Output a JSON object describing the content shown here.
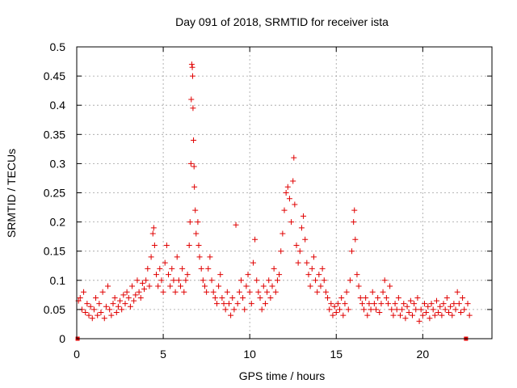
{
  "chart_data": {
    "type": "scatter",
    "title": "Day 091 of 2018, SRMTID for receiver ista",
    "xlabel": "GPS time / hours",
    "ylabel": "SRMTID / TECUs",
    "xlim": [
      0,
      24
    ],
    "ylim": [
      0,
      0.5
    ],
    "xticks": [
      0,
      5,
      10,
      15,
      20
    ],
    "xtick_labels": [
      "0",
      "5",
      "10",
      "15",
      "20"
    ],
    "yticks": [
      0,
      0.05,
      0.1,
      0.15,
      0.2,
      0.25,
      0.3,
      0.35,
      0.4,
      0.45,
      0.5
    ],
    "ytick_labels": [
      "0",
      "0.05",
      "0.1",
      "0.15",
      "0.2",
      "0.25",
      "0.3",
      "0.35",
      "0.4",
      "0.45",
      "0.5"
    ],
    "grid": true,
    "marker": "+",
    "color": "#e00000",
    "series": [
      {
        "name": "SRMTID",
        "points": [
          [
            0.05,
            0.0
          ],
          [
            0.1,
            0.065
          ],
          [
            0.2,
            0.07
          ],
          [
            0.3,
            0.05
          ],
          [
            0.4,
            0.08
          ],
          [
            0.5,
            0.045
          ],
          [
            0.6,
            0.06
          ],
          [
            0.7,
            0.04
          ],
          [
            0.8,
            0.055
          ],
          [
            0.9,
            0.035
          ],
          [
            1.0,
            0.05
          ],
          [
            1.1,
            0.07
          ],
          [
            1.2,
            0.04
          ],
          [
            1.3,
            0.06
          ],
          [
            1.4,
            0.045
          ],
          [
            1.5,
            0.08
          ],
          [
            1.6,
            0.035
          ],
          [
            1.7,
            0.055
          ],
          [
            1.8,
            0.09
          ],
          [
            1.9,
            0.05
          ],
          [
            2.0,
            0.04
          ],
          [
            2.1,
            0.06
          ],
          [
            2.2,
            0.07
          ],
          [
            2.3,
            0.045
          ],
          [
            2.4,
            0.055
          ],
          [
            2.5,
            0.065
          ],
          [
            2.6,
            0.05
          ],
          [
            2.7,
            0.075
          ],
          [
            2.8,
            0.06
          ],
          [
            2.9,
            0.08
          ],
          [
            3.0,
            0.07
          ],
          [
            3.1,
            0.055
          ],
          [
            3.2,
            0.09
          ],
          [
            3.3,
            0.065
          ],
          [
            3.4,
            0.075
          ],
          [
            3.5,
            0.1
          ],
          [
            3.6,
            0.08
          ],
          [
            3.7,
            0.07
          ],
          [
            3.8,
            0.095
          ],
          [
            3.9,
            0.085
          ],
          [
            4.0,
            0.1
          ],
          [
            4.1,
            0.12
          ],
          [
            4.2,
            0.09
          ],
          [
            4.3,
            0.14
          ],
          [
            4.4,
            0.18
          ],
          [
            4.45,
            0.19
          ],
          [
            4.5,
            0.16
          ],
          [
            4.6,
            0.11
          ],
          [
            4.7,
            0.09
          ],
          [
            4.8,
            0.12
          ],
          [
            4.9,
            0.1
          ],
          [
            5.0,
            0.08
          ],
          [
            5.1,
            0.13
          ],
          [
            5.2,
            0.16
          ],
          [
            5.3,
            0.11
          ],
          [
            5.4,
            0.09
          ],
          [
            5.5,
            0.12
          ],
          [
            5.6,
            0.1
          ],
          [
            5.7,
            0.08
          ],
          [
            5.8,
            0.14
          ],
          [
            5.9,
            0.1
          ],
          [
            6.0,
            0.09
          ],
          [
            6.1,
            0.12
          ],
          [
            6.2,
            0.08
          ],
          [
            6.3,
            0.1
          ],
          [
            6.4,
            0.11
          ],
          [
            6.5,
            0.16
          ],
          [
            6.55,
            0.2
          ],
          [
            6.6,
            0.3
          ],
          [
            6.62,
            0.41
          ],
          [
            6.65,
            0.47
          ],
          [
            6.68,
            0.465
          ],
          [
            6.7,
            0.45
          ],
          [
            6.72,
            0.395
          ],
          [
            6.75,
            0.34
          ],
          [
            6.78,
            0.295
          ],
          [
            6.8,
            0.26
          ],
          [
            6.85,
            0.22
          ],
          [
            6.9,
            0.18
          ],
          [
            7.0,
            0.2
          ],
          [
            7.05,
            0.16
          ],
          [
            7.1,
            0.14
          ],
          [
            7.2,
            0.12
          ],
          [
            7.3,
            0.1
          ],
          [
            7.4,
            0.09
          ],
          [
            7.5,
            0.08
          ],
          [
            7.6,
            0.12
          ],
          [
            7.7,
            0.14
          ],
          [
            7.8,
            0.1
          ],
          [
            7.9,
            0.08
          ],
          [
            8.0,
            0.07
          ],
          [
            8.1,
            0.06
          ],
          [
            8.2,
            0.09
          ],
          [
            8.3,
            0.11
          ],
          [
            8.4,
            0.07
          ],
          [
            8.5,
            0.06
          ],
          [
            8.6,
            0.05
          ],
          [
            8.7,
            0.08
          ],
          [
            8.8,
            0.06
          ],
          [
            8.9,
            0.04
          ],
          [
            9.0,
            0.07
          ],
          [
            9.1,
            0.05
          ],
          [
            9.2,
            0.195
          ],
          [
            9.3,
            0.06
          ],
          [
            9.4,
            0.08
          ],
          [
            9.5,
            0.1
          ],
          [
            9.6,
            0.07
          ],
          [
            9.7,
            0.05
          ],
          [
            9.8,
            0.09
          ],
          [
            9.9,
            0.11
          ],
          [
            10.0,
            0.08
          ],
          [
            10.1,
            0.06
          ],
          [
            10.2,
            0.13
          ],
          [
            10.3,
            0.17
          ],
          [
            10.4,
            0.1
          ],
          [
            10.5,
            0.08
          ],
          [
            10.6,
            0.07
          ],
          [
            10.7,
            0.05
          ],
          [
            10.8,
            0.09
          ],
          [
            10.9,
            0.06
          ],
          [
            11.0,
            0.08
          ],
          [
            11.1,
            0.1
          ],
          [
            11.2,
            0.07
          ],
          [
            11.3,
            0.09
          ],
          [
            11.4,
            0.12
          ],
          [
            11.5,
            0.08
          ],
          [
            11.6,
            0.1
          ],
          [
            11.7,
            0.11
          ],
          [
            11.8,
            0.15
          ],
          [
            11.9,
            0.18
          ],
          [
            12.0,
            0.22
          ],
          [
            12.1,
            0.25
          ],
          [
            12.2,
            0.26
          ],
          [
            12.3,
            0.24
          ],
          [
            12.4,
            0.2
          ],
          [
            12.5,
            0.27
          ],
          [
            12.55,
            0.31
          ],
          [
            12.6,
            0.23
          ],
          [
            12.7,
            0.16
          ],
          [
            12.8,
            0.13
          ],
          [
            12.9,
            0.15
          ],
          [
            13.0,
            0.19
          ],
          [
            13.1,
            0.21
          ],
          [
            13.2,
            0.17
          ],
          [
            13.3,
            0.13
          ],
          [
            13.4,
            0.11
          ],
          [
            13.5,
            0.09
          ],
          [
            13.6,
            0.12
          ],
          [
            13.7,
            0.14
          ],
          [
            13.8,
            0.1
          ],
          [
            13.9,
            0.08
          ],
          [
            14.0,
            0.11
          ],
          [
            14.1,
            0.09
          ],
          [
            14.2,
            0.12
          ],
          [
            14.3,
            0.1
          ],
          [
            14.4,
            0.08
          ],
          [
            14.5,
            0.07
          ],
          [
            14.6,
            0.05
          ],
          [
            14.7,
            0.06
          ],
          [
            14.8,
            0.04
          ],
          [
            14.9,
            0.055
          ],
          [
            15.0,
            0.045
          ],
          [
            15.1,
            0.06
          ],
          [
            15.2,
            0.05
          ],
          [
            15.3,
            0.07
          ],
          [
            15.4,
            0.04
          ],
          [
            15.5,
            0.06
          ],
          [
            15.6,
            0.08
          ],
          [
            15.7,
            0.05
          ],
          [
            15.8,
            0.1
          ],
          [
            15.9,
            0.15
          ],
          [
            16.0,
            0.2
          ],
          [
            16.05,
            0.22
          ],
          [
            16.1,
            0.17
          ],
          [
            16.2,
            0.11
          ],
          [
            16.3,
            0.09
          ],
          [
            16.4,
            0.07
          ],
          [
            16.5,
            0.06
          ],
          [
            16.6,
            0.05
          ],
          [
            16.7,
            0.07
          ],
          [
            16.8,
            0.04
          ],
          [
            16.9,
            0.06
          ],
          [
            17.0,
            0.05
          ],
          [
            17.1,
            0.08
          ],
          [
            17.2,
            0.06
          ],
          [
            17.3,
            0.05
          ],
          [
            17.4,
            0.07
          ],
          [
            17.5,
            0.045
          ],
          [
            17.6,
            0.06
          ],
          [
            17.7,
            0.08
          ],
          [
            17.8,
            0.1
          ],
          [
            17.9,
            0.07
          ],
          [
            18.0,
            0.06
          ],
          [
            18.1,
            0.09
          ],
          [
            18.2,
            0.05
          ],
          [
            18.3,
            0.04
          ],
          [
            18.4,
            0.06
          ],
          [
            18.5,
            0.05
          ],
          [
            18.6,
            0.07
          ],
          [
            18.7,
            0.04
          ],
          [
            18.8,
            0.05
          ],
          [
            18.9,
            0.06
          ],
          [
            19.0,
            0.035
          ],
          [
            19.1,
            0.055
          ],
          [
            19.2,
            0.045
          ],
          [
            19.3,
            0.065
          ],
          [
            19.4,
            0.04
          ],
          [
            19.5,
            0.06
          ],
          [
            19.6,
            0.05
          ],
          [
            19.7,
            0.07
          ],
          [
            19.8,
            0.03
          ],
          [
            19.9,
            0.05
          ],
          [
            20.0,
            0.04
          ],
          [
            20.1,
            0.06
          ],
          [
            20.2,
            0.045
          ],
          [
            20.3,
            0.055
          ],
          [
            20.4,
            0.035
          ],
          [
            20.5,
            0.06
          ],
          [
            20.6,
            0.05
          ],
          [
            20.7,
            0.04
          ],
          [
            20.8,
            0.065
          ],
          [
            20.9,
            0.045
          ],
          [
            21.0,
            0.055
          ],
          [
            21.1,
            0.04
          ],
          [
            21.2,
            0.06
          ],
          [
            21.3,
            0.05
          ],
          [
            21.4,
            0.07
          ],
          [
            21.5,
            0.045
          ],
          [
            21.6,
            0.055
          ],
          [
            21.7,
            0.04
          ],
          [
            21.8,
            0.06
          ],
          [
            21.9,
            0.05
          ],
          [
            22.0,
            0.08
          ],
          [
            22.1,
            0.06
          ],
          [
            22.2,
            0.045
          ],
          [
            22.3,
            0.07
          ],
          [
            22.4,
            0.05
          ],
          [
            22.5,
            0.0
          ],
          [
            22.6,
            0.06
          ],
          [
            22.7,
            0.04
          ]
        ]
      }
    ]
  }
}
